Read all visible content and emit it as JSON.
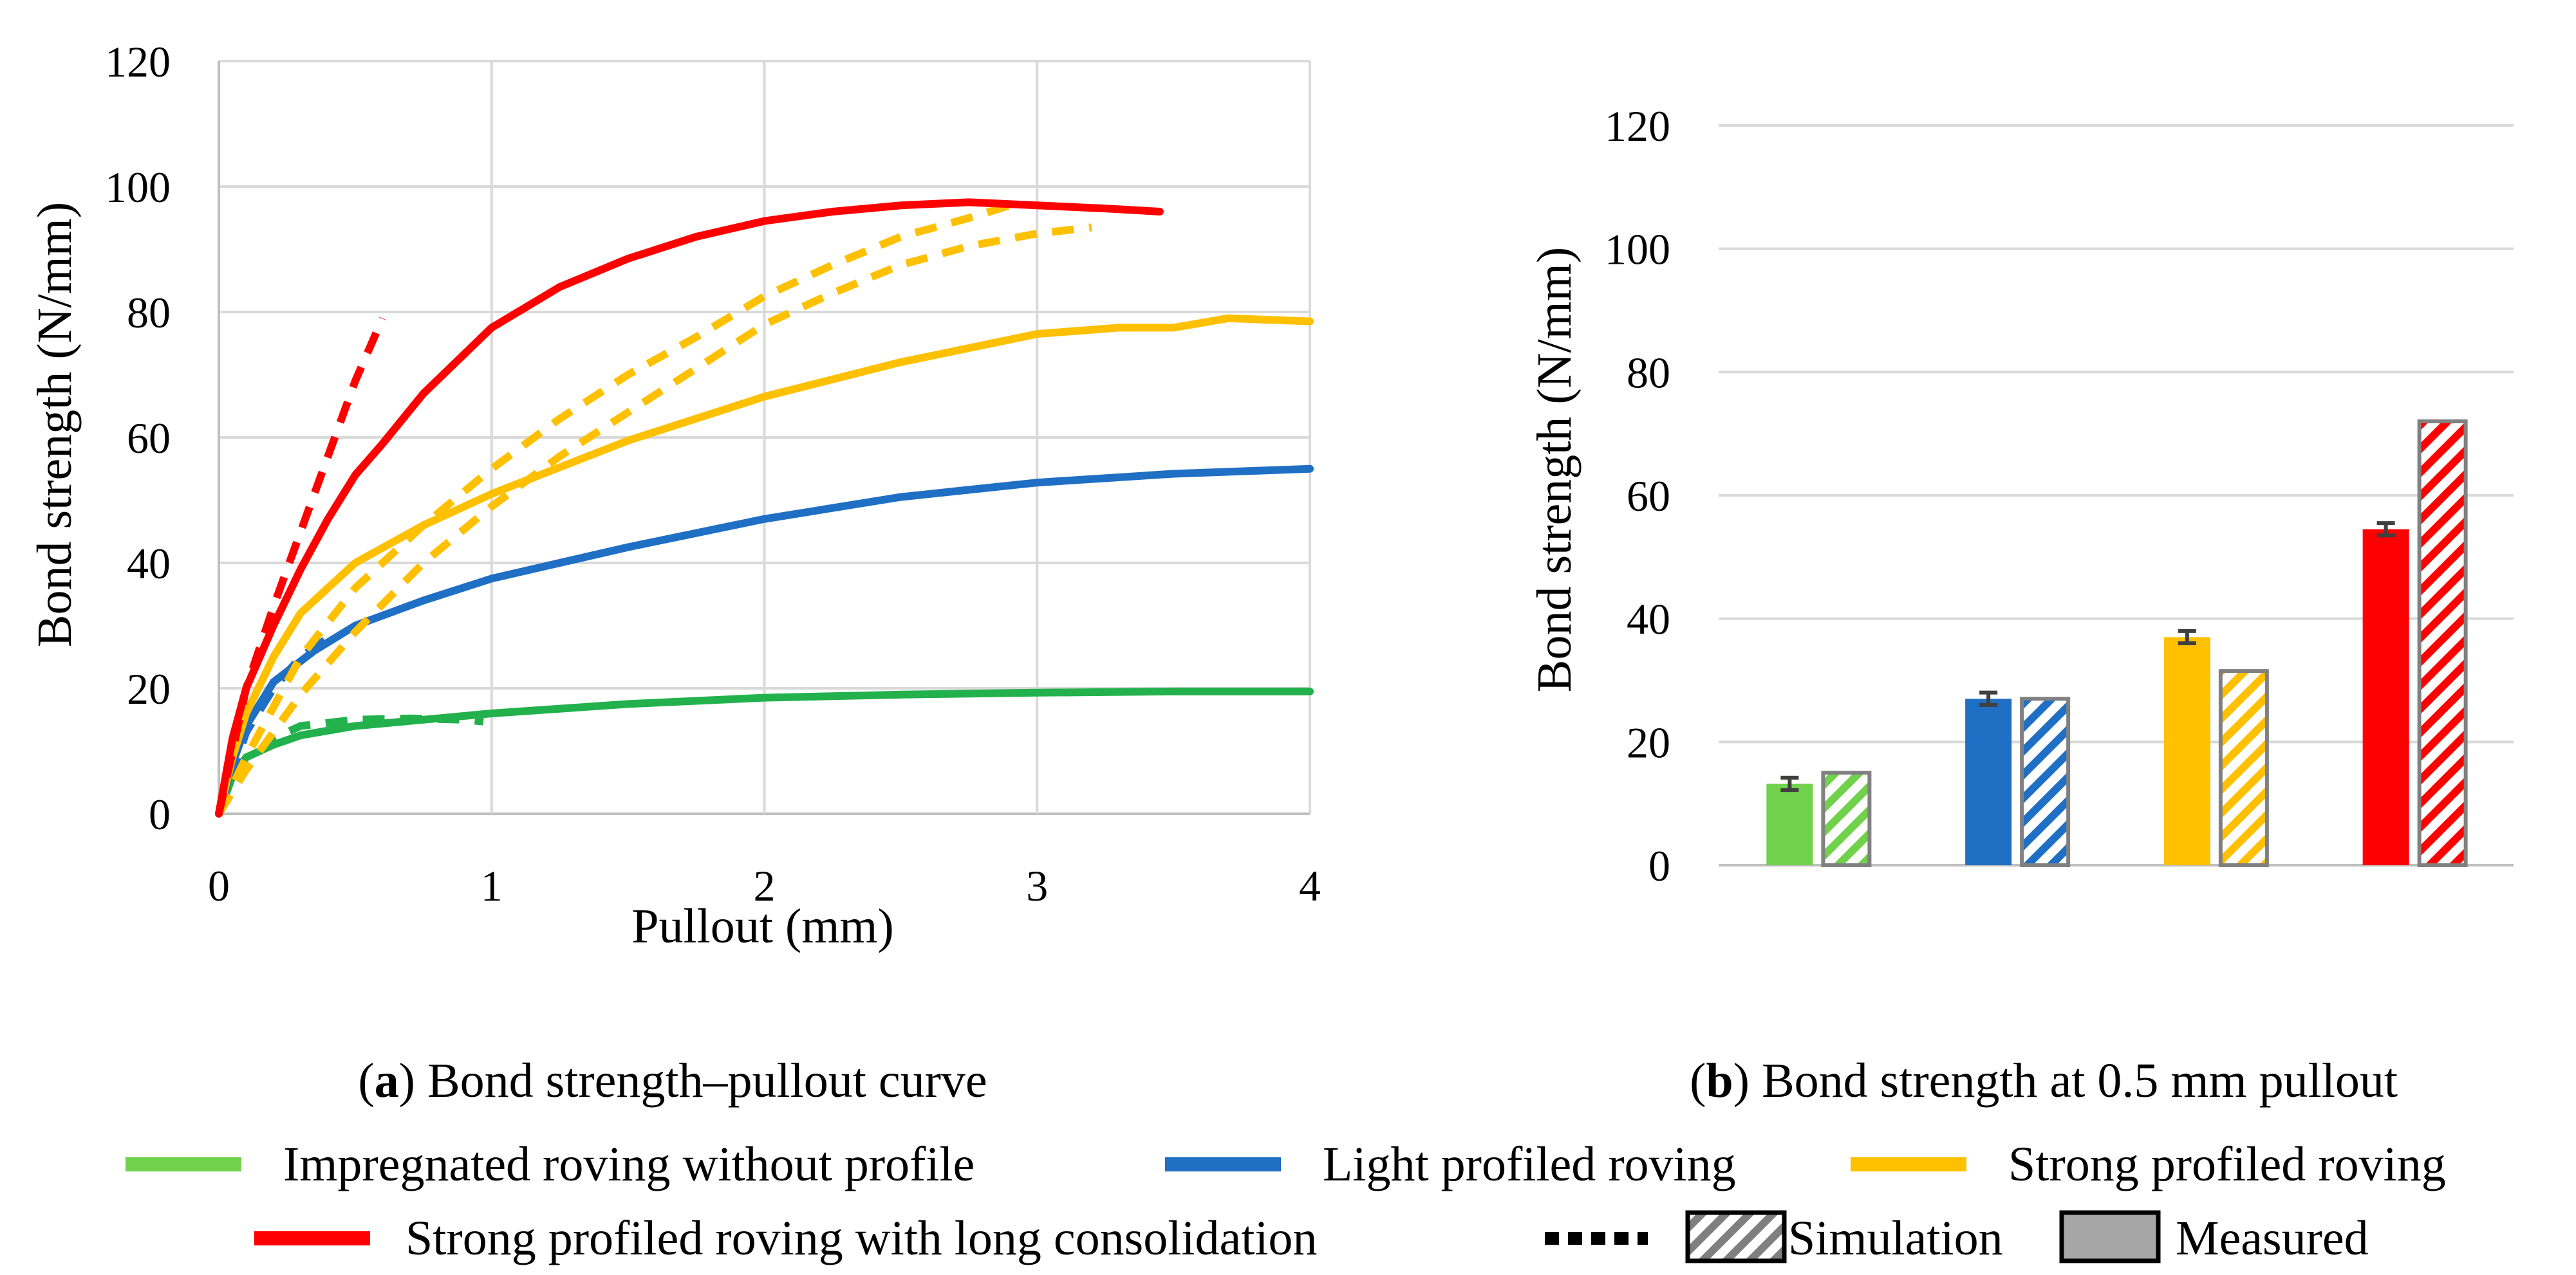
{
  "colors": {
    "green": "#70d14b",
    "green_line": "#22b14c",
    "blue": "#1f6fc4",
    "yellow": "#ffc000",
    "red": "#ff0000"
  },
  "captions": {
    "a_letter": "a",
    "a_text": ") Bond strength–pullout curve",
    "b_letter": "b",
    "b_text": ") Bond strength at 0.5 mm pullout"
  },
  "legend": {
    "impregnated": "Impregnated roving without profile",
    "light": "Light profiled roving",
    "strong": "Strong profiled roving",
    "strong_long": "Strong profiled roving with long consolidation",
    "simulation": "Simulation",
    "measured": "Measured"
  },
  "chart_data": [
    {
      "id": "a",
      "type": "line",
      "title": "",
      "xlabel": "Pullout (mm)",
      "ylabel": "Bond strength (N/mm)",
      "xlim": [
        0,
        4
      ],
      "ylim": [
        0,
        120
      ],
      "xticks": [
        "0",
        "1",
        "2",
        "3",
        "4"
      ],
      "yticks": [
        "0",
        "20",
        "40",
        "60",
        "80",
        "100",
        "120"
      ],
      "grid": true,
      "series": [
        {
          "name": "Impregnated roving without profile (measured)",
          "color": "#22b14c",
          "style": "solid",
          "points": [
            [
              0,
              0
            ],
            [
              0.05,
              6
            ],
            [
              0.1,
              9
            ],
            [
              0.2,
              11
            ],
            [
              0.3,
              12.5
            ],
            [
              0.5,
              14
            ],
            [
              0.75,
              15
            ],
            [
              1,
              16
            ],
            [
              1.5,
              17.5
            ],
            [
              2,
              18.5
            ],
            [
              2.5,
              19
            ],
            [
              3,
              19.3
            ],
            [
              3.5,
              19.5
            ],
            [
              4,
              19.5
            ]
          ]
        },
        {
          "name": "Impregnated roving without profile (simulation)",
          "color": "#22b14c",
          "style": "dashed",
          "points": [
            [
              0,
              0
            ],
            [
              0.05,
              4
            ],
            [
              0.1,
              8
            ],
            [
              0.2,
              12
            ],
            [
              0.3,
              14
            ],
            [
              0.5,
              15
            ],
            [
              0.7,
              15.2
            ],
            [
              0.9,
              15
            ],
            [
              0.97,
              14.7
            ]
          ]
        },
        {
          "name": "Light profiled roving (measured)",
          "color": "#1f6fc4",
          "style": "solid",
          "points": [
            [
              0,
              0
            ],
            [
              0.05,
              8
            ],
            [
              0.1,
              14
            ],
            [
              0.2,
              21
            ],
            [
              0.35,
              26
            ],
            [
              0.5,
              30
            ],
            [
              0.75,
              34
            ],
            [
              1,
              37.5
            ],
            [
              1.5,
              42.5
            ],
            [
              2,
              47
            ],
            [
              2.5,
              50.5
            ],
            [
              3,
              52.8
            ],
            [
              3.5,
              54.2
            ],
            [
              4,
              55
            ]
          ]
        },
        {
          "name": "Light profiled roving (simulation)",
          "color": "#1f6fc4",
          "style": "dashed",
          "points": [
            [
              0,
              0
            ],
            [
              0.1,
              13
            ],
            [
              0.2,
              20
            ],
            [
              0.3,
              25
            ],
            [
              0.4,
              28
            ]
          ]
        },
        {
          "name": "Strong profiled roving (measured)",
          "color": "#ffc000",
          "style": "solid",
          "points": [
            [
              0,
              0
            ],
            [
              0.05,
              9
            ],
            [
              0.1,
              16
            ],
            [
              0.2,
              25
            ],
            [
              0.3,
              32
            ],
            [
              0.5,
              40
            ],
            [
              0.75,
              46
            ],
            [
              1,
              51
            ],
            [
              1.5,
              59.5
            ],
            [
              2,
              66.5
            ],
            [
              2.5,
              72
            ],
            [
              3,
              76.5
            ],
            [
              3.3,
              77.5
            ],
            [
              3.5,
              77.5
            ],
            [
              3.7,
              79
            ],
            [
              4,
              78.5
            ]
          ]
        },
        {
          "name": "Strong profiled roving (simulation 1)",
          "color": "#ffc000",
          "style": "dashed",
          "points": [
            [
              0,
              0
            ],
            [
              0.1,
              9
            ],
            [
              0.2,
              17
            ],
            [
              0.3,
              25
            ],
            [
              0.5,
              36
            ],
            [
              0.75,
              46
            ],
            [
              1,
              55
            ],
            [
              1.25,
              63
            ],
            [
              1.5,
              70
            ],
            [
              1.75,
              76
            ],
            [
              2,
              82.5
            ],
            [
              2.25,
              87.5
            ],
            [
              2.5,
              92
            ],
            [
              2.75,
              95
            ],
            [
              2.9,
              97
            ]
          ]
        },
        {
          "name": "Strong profiled roving (simulation 2)",
          "color": "#ffc000",
          "style": "dashed",
          "points": [
            [
              0,
              0
            ],
            [
              0.1,
              7
            ],
            [
              0.2,
              13
            ],
            [
              0.3,
              19
            ],
            [
              0.5,
              29
            ],
            [
              0.75,
              40
            ],
            [
              1,
              49
            ],
            [
              1.25,
              57
            ],
            [
              1.5,
              64
            ],
            [
              1.75,
              71
            ],
            [
              2,
              78
            ],
            [
              2.25,
              83
            ],
            [
              2.5,
              87.5
            ],
            [
              2.75,
              90.5
            ],
            [
              3,
              92.5
            ],
            [
              3.2,
              93.5
            ]
          ]
        },
        {
          "name": "Strong profiled roving with long consolidation (measured)",
          "color": "#ff0000",
          "style": "solid",
          "points": [
            [
              0,
              0
            ],
            [
              0.05,
              12
            ],
            [
              0.1,
              20
            ],
            [
              0.2,
              30
            ],
            [
              0.3,
              39
            ],
            [
              0.4,
              47
            ],
            [
              0.5,
              54
            ],
            [
              0.6,
              59
            ],
            [
              0.75,
              67
            ],
            [
              1,
              77.5
            ],
            [
              1.25,
              84
            ],
            [
              1.5,
              88.5
            ],
            [
              1.75,
              92
            ],
            [
              2,
              94.5
            ],
            [
              2.25,
              96
            ],
            [
              2.5,
              97
            ],
            [
              2.75,
              97.5
            ],
            [
              3,
              97
            ],
            [
              3.25,
              96.5
            ],
            [
              3.45,
              96
            ]
          ]
        },
        {
          "name": "Strong profiled roving with long consolidation (simulation)",
          "color": "#ff0000",
          "style": "dashed",
          "points": [
            [
              0,
              0
            ],
            [
              0.05,
              10
            ],
            [
              0.1,
              20
            ],
            [
              0.2,
              33
            ],
            [
              0.3,
              45
            ],
            [
              0.4,
              57
            ],
            [
              0.5,
              69
            ],
            [
              0.55,
              74
            ],
            [
              0.6,
              79
            ]
          ]
        }
      ]
    },
    {
      "id": "b",
      "type": "bar",
      "title": "",
      "xlabel": "",
      "ylabel": "Bond strength (N/mm)",
      "ylim": [
        0,
        120
      ],
      "yticks": [
        "0",
        "20",
        "40",
        "60",
        "80",
        "100",
        "120"
      ],
      "grid": true,
      "categories": [
        "Impregnated roving without profile",
        "Light profiled roving",
        "Strong profiled roving",
        "Strong profiled roving with long consolidation"
      ],
      "series": [
        {
          "name": "Measured",
          "pattern": "solid",
          "values": [
            13.2,
            27,
            37,
            54.5
          ],
          "errors": [
            1.0,
            1.0,
            1.0,
            1.0
          ]
        },
        {
          "name": "Simulation",
          "pattern": "hatched",
          "values": [
            15,
            27,
            31.5,
            72
          ]
        }
      ],
      "colors": [
        "#70d14b",
        "#1f6fc4",
        "#ffc000",
        "#ff0000"
      ]
    }
  ]
}
